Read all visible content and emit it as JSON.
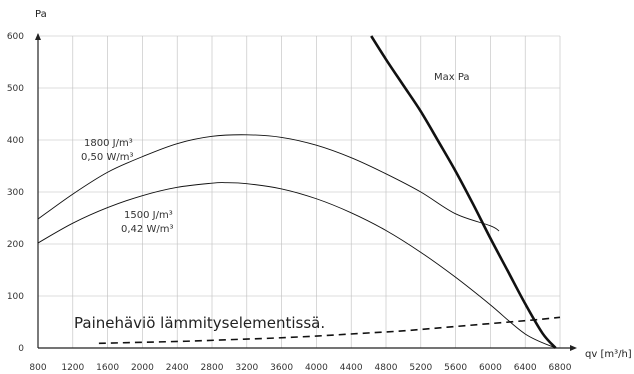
{
  "chart_data": {
    "type": "line",
    "xlabel": "qv [m³/h]",
    "ylabel": "Pa",
    "xlim": [
      800,
      6800
    ],
    "ylim": [
      0,
      600
    ],
    "xticks": [
      800,
      1200,
      1600,
      2000,
      2400,
      2800,
      3200,
      3600,
      4000,
      4400,
      4800,
      5200,
      5600,
      6000,
      6400,
      6800
    ],
    "yticks": [
      0,
      100,
      200,
      300,
      400,
      500,
      600
    ],
    "grid": true,
    "series": [
      {
        "name": "",
        "style": "solid-bold",
        "x": [
          4630,
          4800,
          5000,
          5200,
          5400,
          5600,
          5800,
          6000,
          6200,
          6400,
          6600,
          6750
        ],
        "y": [
          600,
          555,
          505,
          455,
          398,
          340,
          277,
          211,
          148,
          85,
          28,
          0
        ]
      },
      {
        "name": "",
        "style": "solid",
        "x": [
          800,
          1200,
          1600,
          2000,
          2400,
          2800,
          3200,
          3600,
          4000,
          4400,
          4800,
          5200,
          5600,
          6000,
          6100
        ],
        "y": [
          248,
          296,
          338,
          368,
          393,
          407,
          410,
          405,
          390,
          366,
          335,
          300,
          258,
          235,
          225
        ]
      },
      {
        "name": "",
        "style": "solid",
        "x": [
          800,
          1200,
          1600,
          2000,
          2400,
          2800,
          2950,
          3200,
          3600,
          4000,
          4400,
          4800,
          5200,
          5600,
          6000,
          6400,
          6750
        ],
        "y": [
          202,
          240,
          270,
          293,
          309,
          317,
          318,
          316,
          306,
          287,
          260,
          226,
          184,
          136,
          83,
          27,
          0
        ]
      },
      {
        "name": "Painehäviö lämmityselementissä.",
        "style": "dashed",
        "x": [
          1500,
          2000,
          2500,
          3000,
          3500,
          4000,
          4500,
          5000,
          5500,
          6000,
          6500,
          6800
        ],
        "y": [
          9,
          11,
          13,
          16,
          19,
          23,
          28,
          33,
          40,
          47,
          54,
          59
        ]
      }
    ],
    "annotations": {
      "maxpa": "Max Pa",
      "c1_line1": "1800 J/m³",
      "c1_line2": "0,50 W/m³",
      "c2_line1": "1500 J/m³",
      "c2_line2": "0,42 W/m³",
      "heater": "Painehäviö lämmityselementissä."
    }
  }
}
